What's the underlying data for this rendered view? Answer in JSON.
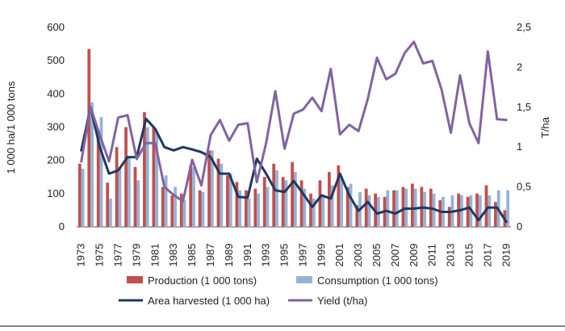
{
  "chart_data": {
    "type": "bar",
    "ylabel": "1 000 ha/1 000 tons",
    "y2label": "T/ha",
    "ylim": [
      0,
      600
    ],
    "y2lim": [
      0,
      2.5
    ],
    "yticks": [
      "0",
      "100",
      "200",
      "300",
      "400",
      "500",
      "600"
    ],
    "y2ticks": [
      "0",
      "0,5",
      "1",
      "1,5",
      "2",
      "2,5"
    ],
    "grid": false,
    "legend_position": "bottom",
    "x": [
      1973,
      1974,
      1975,
      1976,
      1977,
      1978,
      1979,
      1980,
      1981,
      1982,
      1983,
      1984,
      1985,
      1986,
      1987,
      1988,
      1989,
      1990,
      1991,
      1992,
      1993,
      1994,
      1995,
      1996,
      1997,
      1998,
      1999,
      2000,
      2001,
      2002,
      2003,
      2004,
      2005,
      2006,
      2007,
      2008,
      2009,
      2010,
      2011,
      2012,
      2013,
      2014,
      2015,
      2016,
      2017,
      2018,
      2019
    ],
    "series": [
      {
        "name": "Production (1 000 tons)",
        "kind": "bar",
        "axis": "left",
        "color": "#c0504d",
        "values": [
          190,
          535,
          290,
          133,
          240,
          300,
          180,
          345,
          300,
          120,
          95,
          100,
          185,
          110,
          230,
          205,
          155,
          135,
          110,
          115,
          150,
          190,
          150,
          195,
          140,
          100,
          140,
          165,
          185,
          120,
          65,
          115,
          100,
          90,
          110,
          120,
          130,
          120,
          115,
          80,
          60,
          100,
          90,
          100,
          125,
          75,
          50
        ]
      },
      {
        "name": "Consumption (1 000 tons)",
        "kind": "bar",
        "axis": "left",
        "color": "#95b3d7",
        "values": [
          175,
          375,
          330,
          85,
          180,
          210,
          140,
          300,
          285,
          155,
          120,
          80,
          180,
          105,
          230,
          190,
          160,
          110,
          85,
          100,
          120,
          170,
          140,
          165,
          115,
          85,
          95,
          125,
          150,
          130,
          105,
          95,
          90,
          110,
          110,
          115,
          115,
          105,
          100,
          90,
          95,
          95,
          95,
          95,
          95,
          110,
          110
        ]
      },
      {
        "name": "Area harvested (1 000 ha)",
        "kind": "line",
        "axis": "left",
        "color": "#1f3864",
        "values": [
          230,
          360,
          240,
          160,
          170,
          210,
          210,
          325,
          295,
          240,
          230,
          240,
          233,
          225,
          210,
          160,
          160,
          90,
          88,
          205,
          160,
          110,
          105,
          138,
          100,
          60,
          95,
          85,
          160,
          95,
          48,
          75,
          40,
          48,
          40,
          55,
          55,
          58,
          55,
          45,
          45,
          50,
          58,
          20,
          58,
          58,
          15
        ]
      },
      {
        "name": "Yield (t/ha)",
        "kind": "line",
        "axis": "right",
        "color": "#8064a2",
        "values": [
          0.82,
          1.5,
          1.15,
          0.82,
          1.37,
          1.4,
          0.85,
          1.05,
          1.05,
          0.5,
          0.4,
          0.32,
          0.84,
          0.52,
          1.15,
          1.34,
          1.08,
          1.28,
          1.3,
          0.56,
          1.05,
          1.7,
          0.98,
          1.42,
          1.47,
          1.62,
          1.45,
          1.98,
          1.16,
          1.28,
          1.2,
          1.6,
          2.12,
          1.85,
          1.92,
          2.18,
          2.32,
          2.05,
          2.08,
          1.72,
          1.18,
          1.9,
          1.3,
          1.05,
          2.2,
          1.35,
          1.34
        ]
      }
    ]
  }
}
